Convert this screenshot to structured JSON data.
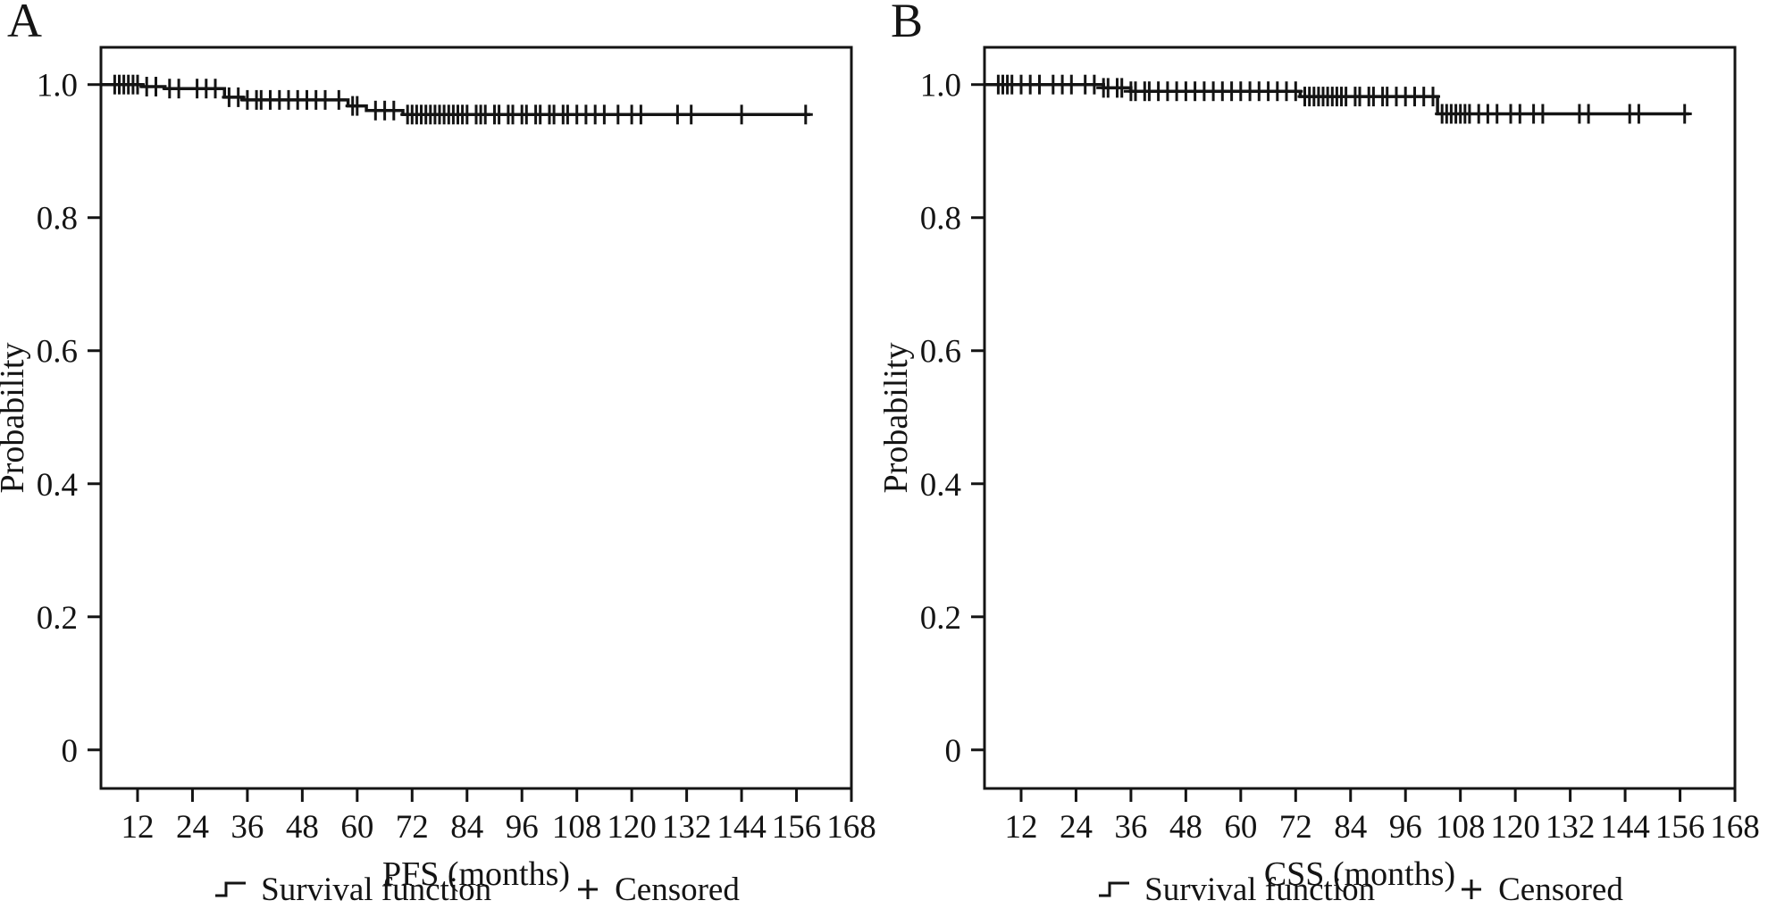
{
  "figure": {
    "background": "#ffffff",
    "text_color": "#141414"
  },
  "chart_data": [
    {
      "type": "line",
      "subtype": "kaplan_meier_step",
      "panel_label": "A",
      "title": "",
      "xlabel": "PFS (months)",
      "ylabel": "Probability",
      "xlim": [
        4,
        168
      ],
      "ylim": [
        -0.058,
        1.056
      ],
      "x_ticks": [
        12,
        24,
        36,
        48,
        60,
        72,
        84,
        96,
        108,
        120,
        132,
        144,
        156,
        168
      ],
      "y_ticks": [
        0,
        0.2,
        0.4,
        0.6,
        0.8,
        1.0
      ],
      "y_tick_labels": [
        "0",
        "0.2",
        "0.4",
        "0.6",
        "0.8",
        "1.0"
      ],
      "grid": false,
      "line_color": "#141414",
      "legend_position": "bottom",
      "series": [
        {
          "name": "Survival function",
          "step_points": [
            [
              4,
              1.0
            ],
            [
              13,
              0.997
            ],
            [
              18,
              0.994
            ],
            [
              31,
              0.981
            ],
            [
              35,
              0.977
            ],
            [
              58,
              0.968
            ],
            [
              62,
              0.961
            ],
            [
              70,
              0.955
            ]
          ],
          "end_x": 159
        }
      ],
      "censored": {
        "name": "Censored",
        "times": [
          7,
          8,
          9,
          10,
          11,
          12,
          14,
          16,
          19,
          21,
          25,
          27,
          29,
          32,
          34,
          36,
          38,
          39,
          41,
          43,
          45,
          47,
          49,
          51,
          53,
          56,
          59,
          60,
          64,
          66,
          68,
          71,
          72,
          73,
          74,
          75,
          76,
          77,
          78,
          79,
          80,
          81,
          82,
          83,
          84,
          86,
          87,
          88,
          90,
          91,
          93,
          94,
          96,
          97,
          99,
          100,
          102,
          103,
          105,
          106,
          108,
          110,
          112,
          114,
          117,
          120,
          122,
          130,
          133,
          144,
          158
        ]
      },
      "legend": {
        "survival_label": "Survival function",
        "censored_label": "Censored"
      }
    },
    {
      "type": "line",
      "subtype": "kaplan_meier_step",
      "panel_label": "B",
      "title": "",
      "xlabel": "CSS (months)",
      "ylabel": "Probability",
      "xlim": [
        4,
        168
      ],
      "ylim": [
        -0.058,
        1.056
      ],
      "x_ticks": [
        12,
        24,
        36,
        48,
        60,
        72,
        84,
        96,
        108,
        120,
        132,
        144,
        156,
        168
      ],
      "y_ticks": [
        0,
        0.2,
        0.4,
        0.6,
        0.8,
        1.0
      ],
      "y_tick_labels": [
        "0",
        "0.2",
        "0.4",
        "0.6",
        "0.8",
        "1.0"
      ],
      "grid": false,
      "line_color": "#141414",
      "legend_position": "bottom",
      "series": [
        {
          "name": "Survival function",
          "step_points": [
            [
              4,
              1.0
            ],
            [
              30,
              0.995
            ],
            [
              36,
              0.99
            ],
            [
              73,
              0.982
            ],
            [
              103,
              0.956
            ]
          ],
          "end_x": 158
        }
      ],
      "censored": {
        "name": "Censored",
        "times": [
          7,
          8,
          9,
          10,
          12,
          14,
          16,
          19,
          21,
          23,
          26,
          28,
          30,
          31,
          33,
          34,
          36,
          37,
          39,
          40,
          42,
          44,
          46,
          48,
          50,
          52,
          54,
          56,
          58,
          60,
          62,
          64,
          66,
          68,
          70,
          72,
          74,
          75,
          76,
          77,
          78,
          79,
          80,
          81,
          82,
          83,
          85,
          86,
          88,
          89,
          91,
          92,
          94,
          96,
          98,
          100,
          102,
          104,
          105,
          106,
          107,
          108,
          109,
          110,
          112,
          114,
          116,
          119,
          121,
          124,
          126,
          134,
          136,
          145,
          147,
          157
        ]
      },
      "legend": {
        "survival_label": "Survival function",
        "censored_label": "Censored"
      }
    }
  ]
}
